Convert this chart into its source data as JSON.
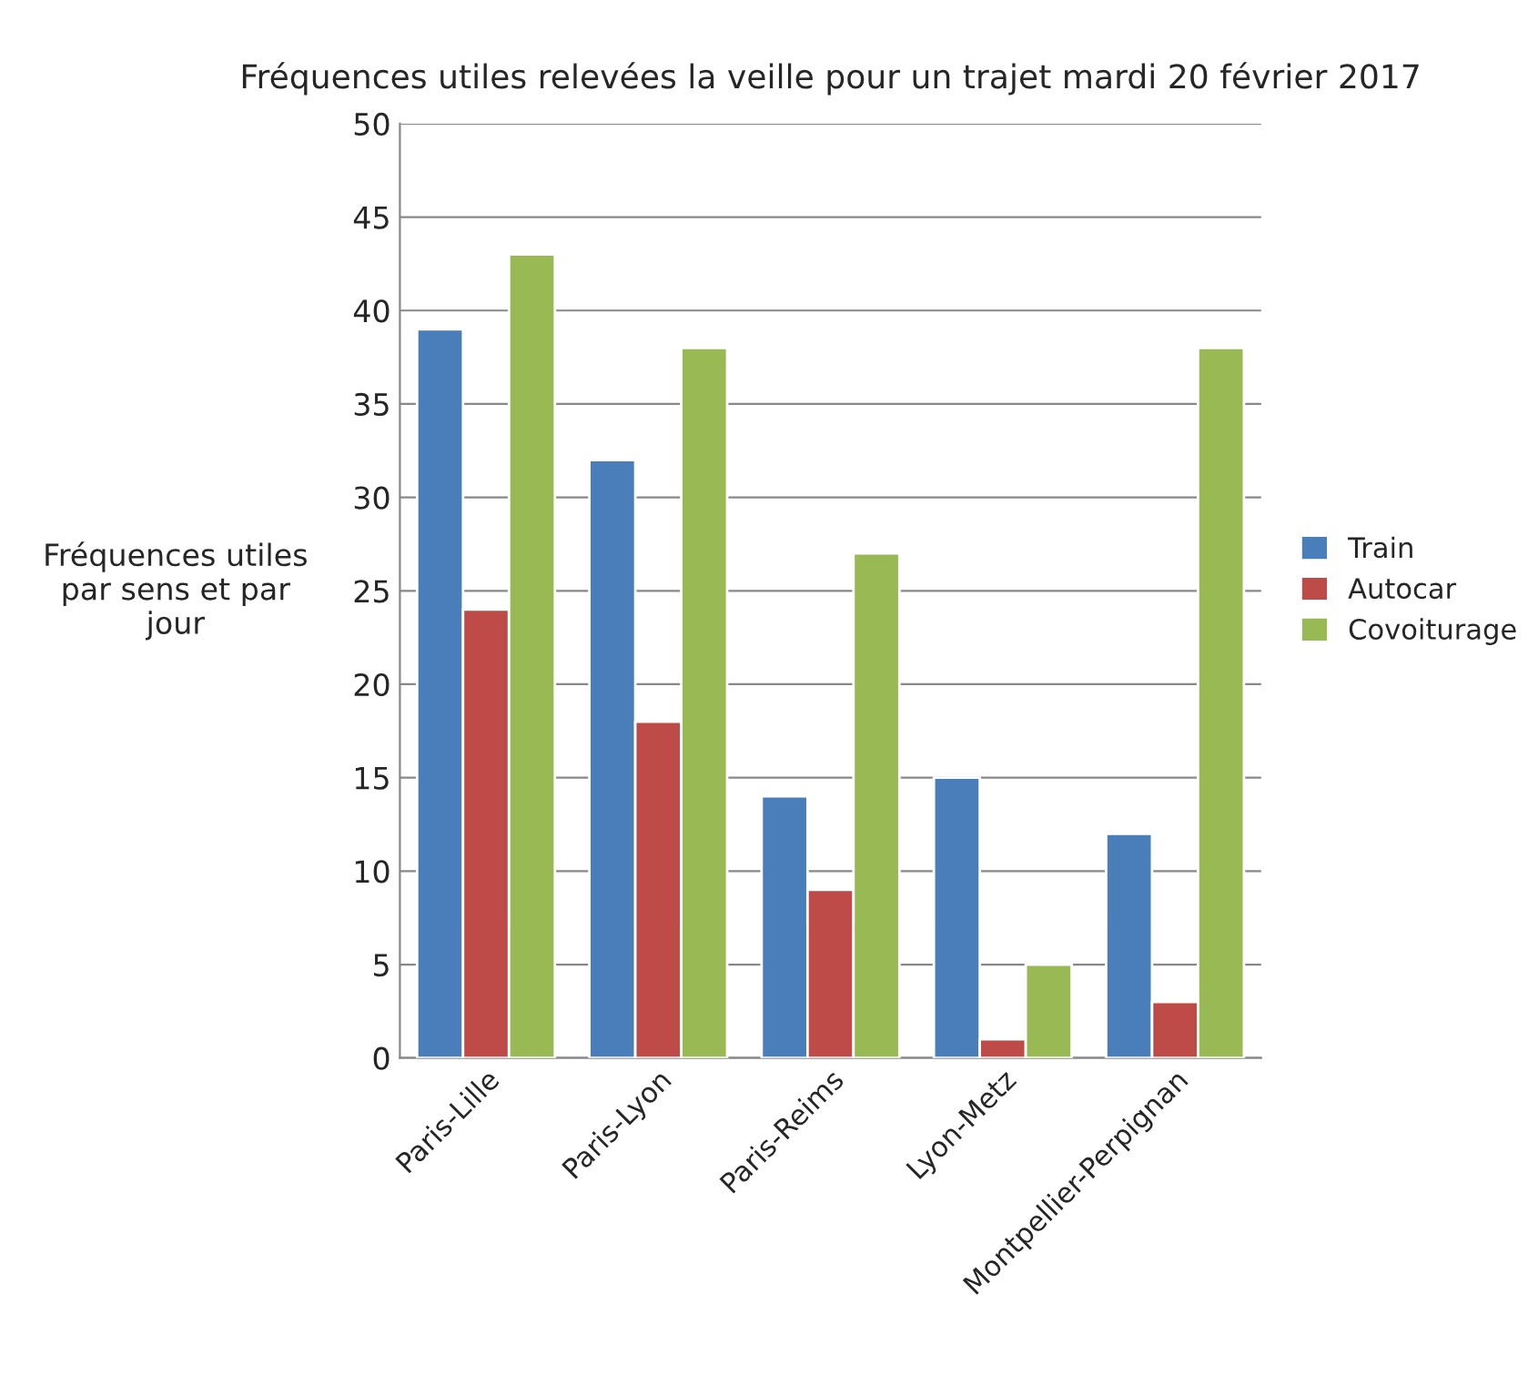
{
  "chart_data": {
    "type": "bar",
    "title": "Fréquences utiles relevées la veille pour un trajet mardi 20 février 2017",
    "ylabel": "Fréquences utiles\npar sens et par\njour",
    "categories": [
      "Paris-Lille",
      "Paris-Lyon",
      "Paris-Reims",
      "Lyon-Metz",
      "Montpellier-Perpignan"
    ],
    "series": [
      {
        "name": "Train",
        "color": "#4a7ebb",
        "values": [
          39,
          32,
          14,
          15,
          12
        ]
      },
      {
        "name": "Autocar",
        "color": "#be4b48",
        "values": [
          24,
          18,
          9,
          1,
          3
        ]
      },
      {
        "name": "Covoiturage",
        "color": "#98b954",
        "values": [
          43,
          38,
          27,
          5,
          38
        ]
      }
    ],
    "ylim": [
      0,
      50
    ],
    "yticks": [
      0,
      5,
      10,
      15,
      20,
      25,
      30,
      35,
      40,
      45,
      50
    ],
    "grid": "y",
    "legend": "right"
  }
}
